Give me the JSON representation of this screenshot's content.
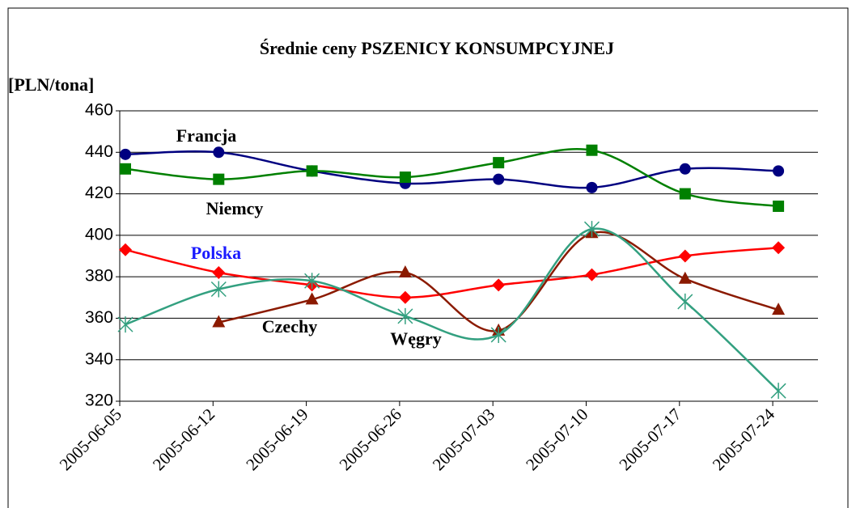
{
  "chart_data": {
    "type": "line",
    "title": "Średnie ceny PSZENICY KONSUMPCYJNEJ",
    "y_label": "[PLN/tona]",
    "categories": [
      "2005-06-05",
      "2005-06-12",
      "2005-06-19",
      "2005-06-26",
      "2005-07-03",
      "2005-07-10",
      "2005-07-17",
      "2005-07-24"
    ],
    "ylim": [
      320,
      460
    ],
    "yticks": [
      320,
      340,
      360,
      380,
      400,
      420,
      440,
      460
    ],
    "grid": true,
    "series": [
      {
        "name": "Francja",
        "color": "#000080",
        "marker": "circle",
        "values": [
          439,
          440,
          431,
          425,
          427,
          423,
          432,
          431
        ]
      },
      {
        "name": "Niemcy",
        "color": "#008000",
        "marker": "square",
        "values": [
          432,
          427,
          431,
          428,
          435,
          441,
          420,
          414
        ]
      },
      {
        "name": "Polska",
        "color": "#ff0000",
        "marker": "diamond",
        "values": [
          393,
          382,
          376,
          370,
          376,
          381,
          390,
          394
        ]
      },
      {
        "name": "Czechy",
        "color": "#8b1a00",
        "marker": "triangle",
        "values": [
          null,
          358,
          369,
          382,
          354,
          401,
          379,
          364
        ]
      },
      {
        "name": "Węgry",
        "color": "#33a080",
        "marker": "star",
        "values": [
          357,
          374,
          378,
          361,
          352,
          403,
          368,
          325
        ]
      }
    ]
  }
}
